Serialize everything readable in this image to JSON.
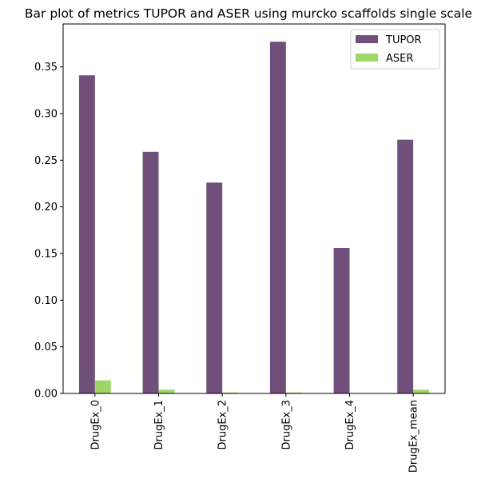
{
  "chart_data": {
    "type": "bar",
    "title": "Bar plot of metrics TUPOR and ASER using murcko scaffolds single scale",
    "xlabel": "",
    "ylabel": "",
    "categories": [
      "DrugEx_0",
      "DrugEx_1",
      "DrugEx_2",
      "DrugEx_3",
      "DrugEx_4",
      "DrugEx_mean"
    ],
    "series": [
      {
        "name": "TUPOR",
        "color": "#704f7a",
        "values": [
          0.341,
          0.259,
          0.226,
          0.377,
          0.156,
          0.272
        ]
      },
      {
        "name": "ASER",
        "color": "#9fd667",
        "values": [
          0.014,
          0.004,
          0.001,
          0.001,
          0.0,
          0.004
        ]
      }
    ],
    "ylim": [
      0,
      0.396
    ],
    "yticks": [
      "0.00",
      "0.05",
      "0.10",
      "0.15",
      "0.20",
      "0.25",
      "0.30",
      "0.35"
    ],
    "grid": false,
    "legend": "top-right"
  }
}
